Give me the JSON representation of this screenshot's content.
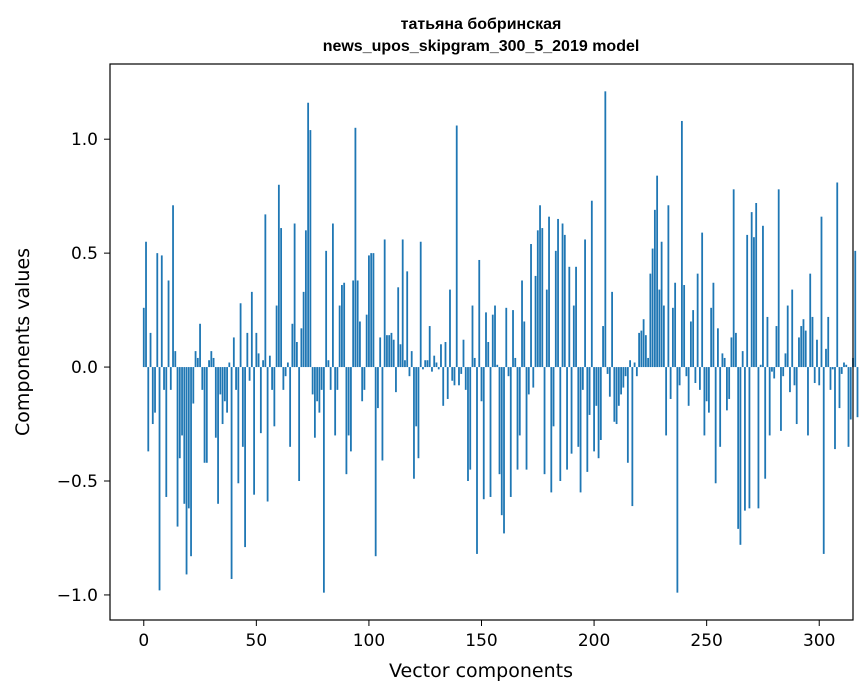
{
  "chart_data": {
    "type": "bar",
    "title_lines": [
      "татьяна бобринская",
      "news_upos_skipgram_300_5_2019 model"
    ],
    "xlabel": "Vector components",
    "ylabel": "Components values",
    "xlim": [
      -15,
      315
    ],
    "ylim": [
      -1.11,
      1.33
    ],
    "xticks": [
      0,
      50,
      100,
      150,
      200,
      250,
      300
    ],
    "xtick_labels": [
      "0",
      "50",
      "100",
      "150",
      "200",
      "250",
      "300"
    ],
    "yticks": [
      -1.0,
      -0.5,
      0.0,
      0.5,
      1.0
    ],
    "ytick_labels": [
      "−1.0",
      "−0.5",
      "0.0",
      "0.5",
      "1.0"
    ],
    "bar_color": "#1f77b4",
    "grid": false,
    "values": [
      0.26,
      0.55,
      -0.37,
      0.15,
      -0.25,
      -0.2,
      0.5,
      -0.98,
      0.49,
      -0.1,
      -0.57,
      0.38,
      -0.1,
      0.71,
      0.07,
      -0.7,
      -0.4,
      -0.3,
      -0.6,
      -0.91,
      -0.62,
      -0.83,
      -0.16,
      0.07,
      0.04,
      0.19,
      -0.1,
      -0.42,
      -0.42,
      0.03,
      0.07,
      0.04,
      -0.31,
      -0.6,
      -0.12,
      -0.25,
      -0.15,
      -0.2,
      0.02,
      -0.93,
      0.13,
      -0.1,
      -0.51,
      0.28,
      -0.35,
      -0.79,
      0.15,
      -0.06,
      0.33,
      -0.56,
      0.15,
      0.06,
      -0.29,
      0.03,
      0.67,
      -0.59,
      0.05,
      -0.1,
      -0.26,
      0.27,
      0.8,
      0.61,
      -0.1,
      -0.04,
      0.02,
      -0.35,
      0.19,
      0.63,
      0.11,
      -0.5,
      0.17,
      0.33,
      0.6,
      1.16,
      1.04,
      -0.12,
      -0.31,
      -0.15,
      -0.2,
      -0.1,
      -0.99,
      0.51,
      0.03,
      -0.1,
      0.63,
      -0.3,
      -0.1,
      0.27,
      0.36,
      0.37,
      -0.47,
      -0.3,
      -0.37,
      0.38,
      1.05,
      0.38,
      0.2,
      -0.15,
      -0.1,
      0.23,
      0.49,
      0.5,
      0.5,
      -0.83,
      -0.18,
      0.13,
      -0.41,
      0.56,
      0.14,
      0.14,
      0.15,
      0.12,
      -0.11,
      0.35,
      0.1,
      0.56,
      0.03,
      0.42,
      -0.04,
      0.07,
      -0.49,
      -0.26,
      -0.4,
      0.55,
      -0.01,
      0.03,
      0.03,
      0.18,
      -0.02,
      0.05,
      0.02,
      -0.01,
      0.1,
      -0.17,
      0.11,
      -0.14,
      0.34,
      -0.06,
      -0.08,
      1.06,
      -0.08,
      -0.03,
      0.12,
      -0.1,
      -0.5,
      -0.45,
      0.27,
      0.04,
      -0.82,
      0.47,
      -0.15,
      -0.58,
      0.24,
      0.11,
      -0.57,
      0.23,
      0.27,
      0.01,
      -0.47,
      -0.65,
      -0.73,
      0.26,
      -0.04,
      -0.57,
      0.25,
      0.04,
      -0.45,
      -0.3,
      0.38,
      0.2,
      -0.45,
      -0.12,
      0.54,
      -0.09,
      0.4,
      0.6,
      0.71,
      0.61,
      -0.47,
      0.34,
      0.66,
      -0.55,
      -0.26,
      0.51,
      0.65,
      -0.5,
      0.63,
      0.58,
      -0.45,
      0.44,
      -0.38,
      0.27,
      0.44,
      -0.35,
      -0.55,
      -0.1,
      0.56,
      -0.46,
      -0.21,
      0.73,
      -0.37,
      -0.17,
      -0.4,
      -0.32,
      0.18,
      1.21,
      -0.03,
      -0.13,
      0.33,
      -0.24,
      -0.25,
      -0.17,
      -0.12,
      -0.09,
      -0.04,
      -0.42,
      0.03,
      -0.61,
      0.02,
      -0.04,
      0.15,
      0.16,
      0.21,
      0.14,
      0.04,
      0.41,
      0.52,
      0.69,
      0.84,
      0.34,
      0.55,
      0.27,
      -0.3,
      0.71,
      -0.14,
      0.26,
      0.37,
      -0.99,
      -0.08,
      1.08,
      0.36,
      -0.04,
      -0.17,
      0.2,
      0.25,
      -0.07,
      0.41,
      -0.1,
      0.59,
      -0.3,
      -0.15,
      -0.2,
      0.26,
      0.37,
      -0.51,
      0.17,
      -0.35,
      0.06,
      0.04,
      -0.19,
      -0.14,
      0.13,
      0.78,
      0.15,
      -0.71,
      -0.78,
      0.07,
      -0.63,
      0.58,
      -0.62,
      0.68,
      0.57,
      0.72,
      -0.62,
      0.01,
      0.62,
      -0.49,
      0.22,
      -0.3,
      -0.02,
      -0.05,
      0.18,
      0.78,
      -0.28,
      -0.04,
      0.06,
      0.27,
      -0.11,
      0.34,
      -0.08,
      -0.25,
      0.13,
      0.18,
      0.21,
      0.16,
      -0.3,
      0.41,
      0.22,
      -0.07,
      0.12,
      -0.08,
      0.66,
      -0.82,
      0.08,
      0.22,
      -0.1,
      -0.01,
      -0.36,
      0.81,
      -0.18,
      -0.03,
      0.02,
      0.01,
      -0.35,
      -0.23,
      0.04,
      0.51,
      -0.22
    ]
  }
}
